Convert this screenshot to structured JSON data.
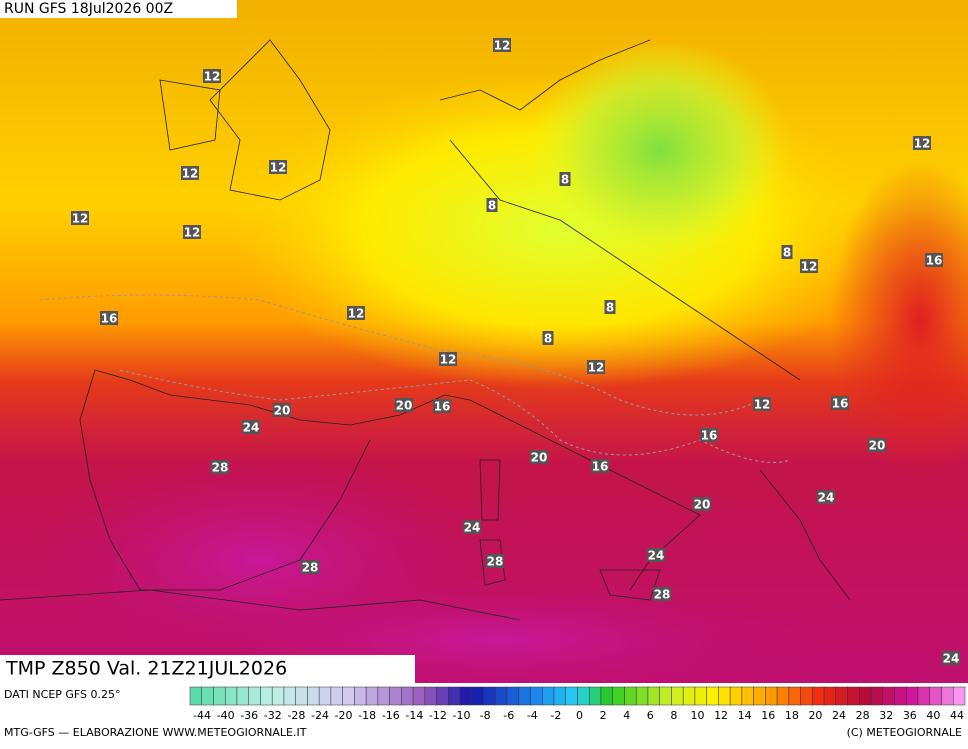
{
  "header": {
    "run": "RUN GFS 18Jul2026 00Z"
  },
  "map": {
    "title": "TMP Z850 Val. 21Z21JUL2026",
    "isotherm_labels": [
      12,
      12,
      12,
      12,
      12,
      8,
      8,
      12,
      12,
      8,
      12,
      16,
      12,
      8,
      16,
      8,
      12,
      12,
      20,
      20,
      16,
      12,
      16,
      24,
      16,
      20,
      28,
      20,
      16,
      24,
      20,
      24,
      24,
      28,
      28,
      28,
      24
    ]
  },
  "legend": {
    "source": "DATI NCEP GFS 0.25°",
    "ticks": [
      -44,
      -40,
      -36,
      -32,
      -28,
      -24,
      -20,
      -18,
      -16,
      -14,
      -12,
      -10,
      -8,
      -6,
      -4,
      -2,
      0,
      2,
      4,
      6,
      8,
      10,
      12,
      14,
      16,
      18,
      20,
      24,
      28,
      32,
      36,
      40,
      44
    ]
  },
  "footer": {
    "left": "MTG-GFS — ELABORAZIONE WWW.METEOGIORNALE.IT",
    "right": "(C) METEOGIORNALE"
  }
}
